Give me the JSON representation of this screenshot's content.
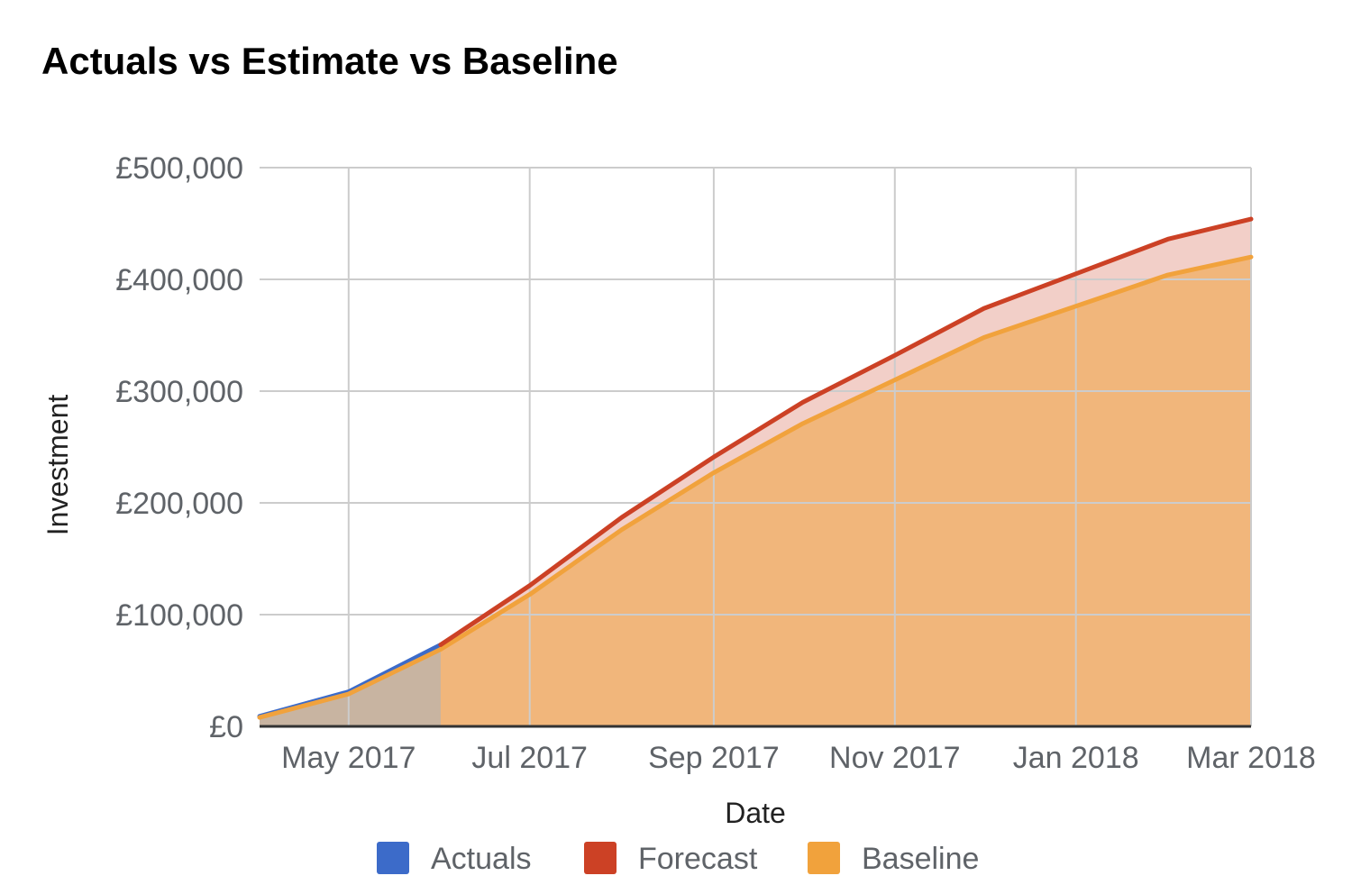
{
  "chart_data": {
    "type": "area",
    "title": "Actuals vs Estimate vs Baseline",
    "xlabel": "Date",
    "ylabel": "Investment",
    "x_tick_labels": [
      {
        "date": "2017-05-01",
        "label": "May 2017"
      },
      {
        "date": "2017-07-01",
        "label": "Jul 2017"
      },
      {
        "date": "2017-09-01",
        "label": "Sep 2017"
      },
      {
        "date": "2017-11-01",
        "label": "Nov 2017"
      },
      {
        "date": "2018-01-01",
        "label": "Jan 2018"
      },
      {
        "date": "2018-03-01",
        "label": "Mar 2018"
      }
    ],
    "y_ticks": [
      {
        "value": 0,
        "label": "£0"
      },
      {
        "value": 100000,
        "label": "£100,000"
      },
      {
        "value": 200000,
        "label": "£200,000"
      },
      {
        "value": 300000,
        "label": "£300,000"
      },
      {
        "value": 400000,
        "label": "£400,000"
      },
      {
        "value": 500000,
        "label": "£500,000"
      }
    ],
    "xlim": [
      "2017-04-01",
      "2018-03-01"
    ],
    "ylim": [
      0,
      500000
    ],
    "grid": true,
    "legend_position": "bottom",
    "series": [
      {
        "name": "Actuals",
        "color": "#3c6bc9",
        "points": [
          {
            "x": "2017-04-01",
            "y": 9000
          },
          {
            "x": "2017-05-01",
            "y": 31000
          },
          {
            "x": "2017-06-01",
            "y": 73000
          }
        ]
      },
      {
        "name": "Forecast",
        "color": "#cc4125",
        "points": [
          {
            "x": "2017-06-01",
            "y": 73000
          },
          {
            "x": "2017-07-01",
            "y": 126000
          },
          {
            "x": "2017-08-01",
            "y": 187000
          },
          {
            "x": "2017-09-01",
            "y": 241000
          },
          {
            "x": "2017-10-01",
            "y": 290000
          },
          {
            "x": "2017-11-01",
            "y": 332000
          },
          {
            "x": "2017-12-01",
            "y": 374000
          },
          {
            "x": "2018-01-01",
            "y": 405000
          },
          {
            "x": "2018-02-01",
            "y": 436000
          },
          {
            "x": "2018-03-01",
            "y": 454000
          }
        ]
      },
      {
        "name": "Baseline",
        "color": "#f1a23c",
        "points": [
          {
            "x": "2017-04-01",
            "y": 8000
          },
          {
            "x": "2017-05-01",
            "y": 29000
          },
          {
            "x": "2017-06-01",
            "y": 69000
          },
          {
            "x": "2017-07-01",
            "y": 118000
          },
          {
            "x": "2017-08-01",
            "y": 176000
          },
          {
            "x": "2017-09-01",
            "y": 227000
          },
          {
            "x": "2017-10-01",
            "y": 271000
          },
          {
            "x": "2017-11-01",
            "y": 310000
          },
          {
            "x": "2017-12-01",
            "y": 348000
          },
          {
            "x": "2018-01-01",
            "y": 376000
          },
          {
            "x": "2018-02-01",
            "y": 404000
          },
          {
            "x": "2018-03-01",
            "y": 420000
          }
        ]
      }
    ]
  }
}
